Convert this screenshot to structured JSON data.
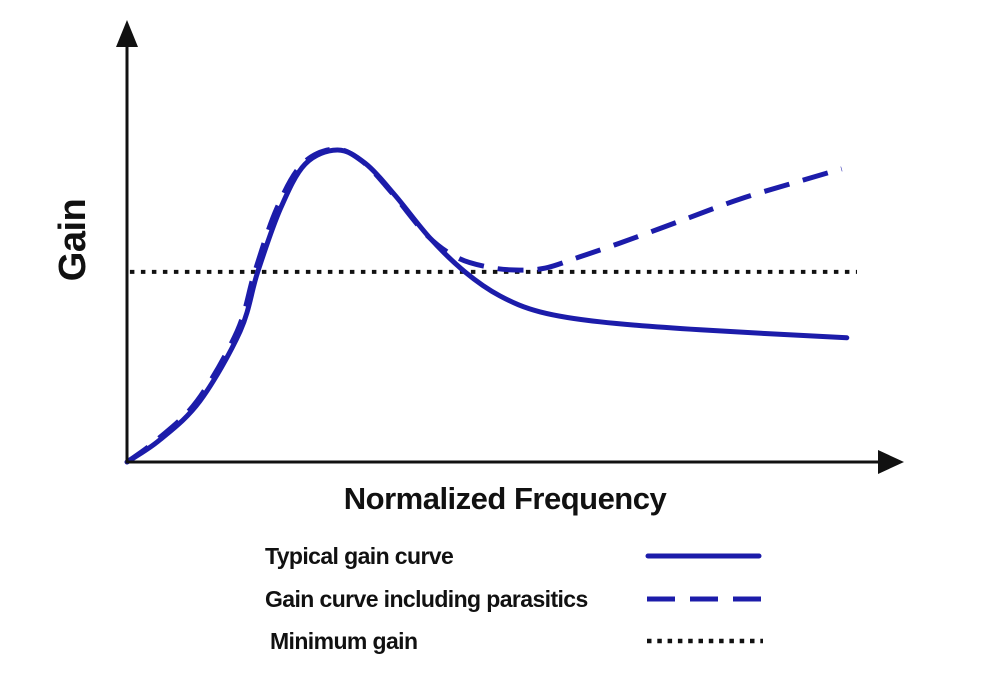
{
  "figure": {
    "background": "#ffffff",
    "axis_color": "#111111",
    "curve_color": "#1c1caa",
    "ylabel": "Gain",
    "xlabel": "Normalized Frequency"
  },
  "legend": {
    "items": [
      {
        "label": "Typical gain curve",
        "style": "solid",
        "color": "#1c1caa"
      },
      {
        "label": "Gain curve including parasitics",
        "style": "dashed",
        "color": "#1c1caa"
      },
      {
        "label": "Minimum gain",
        "style": "dotted",
        "color": "#111111"
      }
    ]
  },
  "chart_data": {
    "type": "line",
    "title": "",
    "xlabel": "Normalized Frequency",
    "ylabel": "Gain",
    "xlim": [
      0,
      1
    ],
    "ylim": [
      0,
      1
    ],
    "grid": false,
    "axis_ticks": "none (conceptual sketch, unlabeled axes)",
    "legend_position": "below",
    "min_gain_level": 0.594,
    "series": [
      {
        "name": "Typical gain curve",
        "style": "solid",
        "color": "#1c1caa",
        "points": [
          [
            0.0,
            0.0
          ],
          [
            0.045,
            0.069
          ],
          [
            0.1,
            0.191
          ],
          [
            0.155,
            0.409
          ],
          [
            0.179,
            0.594
          ],
          [
            0.21,
            0.791
          ],
          [
            0.244,
            0.931
          ],
          [
            0.288,
            0.975
          ],
          [
            0.326,
            0.934
          ],
          [
            0.367,
            0.834
          ],
          [
            0.415,
            0.7
          ],
          [
            0.463,
            0.594
          ],
          [
            0.511,
            0.519
          ],
          [
            0.566,
            0.469
          ],
          [
            0.648,
            0.438
          ],
          [
            0.785,
            0.413
          ],
          [
            0.986,
            0.388
          ]
        ]
      },
      {
        "name": "Gain curve including parasitics",
        "style": "dashed",
        "color": "#1c1caa",
        "points": [
          [
            0.0,
            0.0
          ],
          [
            0.041,
            0.069
          ],
          [
            0.096,
            0.191
          ],
          [
            0.151,
            0.409
          ],
          [
            0.175,
            0.594
          ],
          [
            0.205,
            0.791
          ],
          [
            0.24,
            0.931
          ],
          [
            0.285,
            0.978
          ],
          [
            0.323,
            0.938
          ],
          [
            0.364,
            0.838
          ],
          [
            0.412,
            0.706
          ],
          [
            0.453,
            0.638
          ],
          [
            0.495,
            0.609
          ],
          [
            0.532,
            0.6
          ],
          [
            0.573,
            0.606
          ],
          [
            0.62,
            0.641
          ],
          [
            0.675,
            0.684
          ],
          [
            0.758,
            0.753
          ],
          [
            0.84,
            0.822
          ],
          [
            0.922,
            0.878
          ],
          [
            0.979,
            0.916
          ]
        ]
      },
      {
        "name": "Minimum gain",
        "style": "dotted",
        "color": "#111111",
        "points": [
          [
            0.004,
            0.594
          ],
          [
            1.0,
            0.594
          ]
        ]
      }
    ]
  }
}
